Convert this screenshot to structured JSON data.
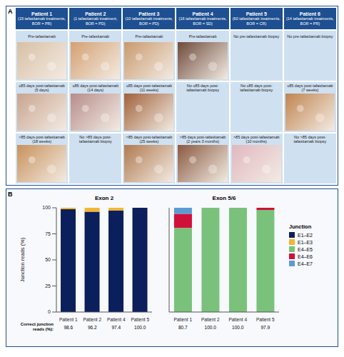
{
  "panel_a": {
    "label": "A",
    "patients": [
      {
        "name": "Patient 1",
        "subtitle": "(15 tafasitamab treatments, BOR = PR)",
        "cells": [
          {
            "label": "Pre-tafasitamab",
            "color": "#d8c0a4"
          },
          {
            "label": "≤85 days post-tafasitamab (5 days)",
            "color": "#c9a48e"
          },
          {
            "label": ">85 days post-tafasitamab (18 weeks)",
            "color": "#c8925c"
          }
        ]
      },
      {
        "name": "Patient 2",
        "subtitle": "(1 tafasitamab treatment, BOR = PD)",
        "cells": [
          {
            "label": "Pre-tafasitamab",
            "color": "#d4a071"
          },
          {
            "label": "≤85 days post-tafasitamab (14 days)",
            "color": "#b78d8a"
          },
          {
            "label": "No >85 days post-tafasitamab biopsy"
          }
        ]
      },
      {
        "name": "Patient 3",
        "subtitle": "(10 tafasitamab treatments, BOR = PD)",
        "cells": [
          {
            "label": "Pre-tafasitamab",
            "color": "#c89a6e"
          },
          {
            "label": "≤85 days post-tafasitamab (11 weeks)",
            "color": "#a0623a"
          },
          {
            "label": ">85 days post-tafasitamab (25 weeks)",
            "color": "#b07a50"
          }
        ]
      },
      {
        "name": "Patient 4",
        "subtitle": "(16 tafasitamab treatments, BOR = SD)",
        "cells": [
          {
            "label": "Pre-tafasitamab",
            "color": "#6e4a3a"
          },
          {
            "label": "No ≤85 days post-tafasitamab biopsy"
          },
          {
            "label": ">85 days post-tafasitamab (2 years 3 months)",
            "color": "#8a5a40"
          }
        ]
      },
      {
        "name": "Patient 5",
        "subtitle": "(60 tafasitamab treatments, BOR = CR)",
        "cells": [
          {
            "label": "No pre-tafasitamab biopsy"
          },
          {
            "label": "No ≤85 days post-tafasitamab biopsy"
          },
          {
            "label": ">85 days post-tafasitamab (10 months)",
            "color": "#e0b8c0"
          }
        ]
      },
      {
        "name": "Patient 6",
        "subtitle": "(14 tafasitamab treatments, BOR = PR)",
        "cells": [
          {
            "label": "No pre-tafasitamab biopsy"
          },
          {
            "label": "≤85 days post-tafasitamab (7 weeks)",
            "color": "#c08550"
          },
          {
            "label": "No >85 days post-tafasitamab biopsy"
          }
        ]
      }
    ]
  },
  "panel_b": {
    "label": "B",
    "legend_title": "Junction",
    "footer_label": "Correct junction reads (%):"
  },
  "chart_data": [
    {
      "type": "bar",
      "stacked": true,
      "title": "Exon 2",
      "y_label": "Junction reads (%)",
      "categories": [
        "Patient 1",
        "Patient 2",
        "Patient 4",
        "Patient 5"
      ],
      "series": [
        {
          "name": "E1–E2",
          "color": "#0b1f5c",
          "values": [
            98.6,
            96.2,
            97.4,
            100
          ]
        },
        {
          "name": "E1–E3",
          "color": "#f2b632",
          "values": [
            1.4,
            3.8,
            2.6,
            0
          ]
        }
      ],
      "ylim": [
        0,
        100
      ],
      "yticks": [
        0,
        25,
        50,
        75,
        100
      ],
      "correct_junction_reads": [
        "98.6",
        "96.2",
        "97.4",
        "100.0"
      ]
    },
    {
      "type": "bar",
      "stacked": true,
      "title": "Exon 5/6",
      "tick_labels": "x",
      "categories": [
        "Patient 1",
        "Patient 2",
        "Patient 4",
        "Patient 5"
      ],
      "series": [
        {
          "name": "E4–E5",
          "color": "#7ac27b",
          "values": [
            80.7,
            100,
            100,
            97.9
          ]
        },
        {
          "name": "E4–E6",
          "color": "#d0103a",
          "values": [
            13.5,
            0,
            0,
            2.1
          ]
        },
        {
          "name": "E4–E7",
          "color": "#5b9bd5",
          "values": [
            5.8,
            0,
            0,
            0
          ]
        }
      ],
      "ylim": [
        0,
        100
      ],
      "correct_junction_reads": [
        "80.7",
        "100.0",
        "100.0",
        "97.9"
      ]
    }
  ]
}
